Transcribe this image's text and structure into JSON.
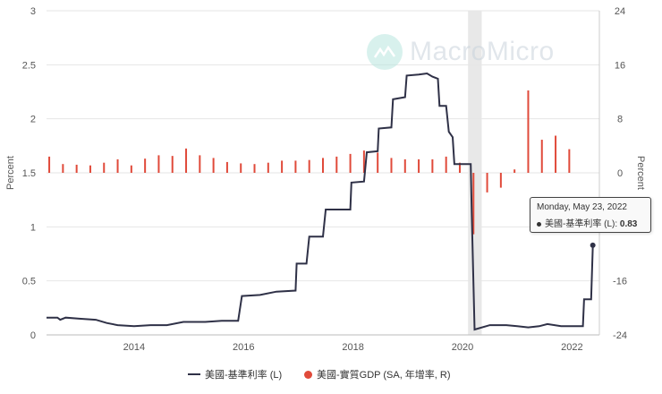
{
  "watermark": {
    "text": "MacroMicro"
  },
  "chart_data": {
    "type": "line",
    "left_axis": {
      "label": "Percent",
      "ticks": [
        0,
        0.5,
        1,
        1.5,
        2,
        2.5,
        3
      ],
      "tick_labels": [
        "0",
        "0.5",
        "1",
        "1.5",
        "2",
        "2.5",
        "3"
      ],
      "range": [
        0,
        3
      ]
    },
    "right_axis": {
      "label": "Percent",
      "ticks": [
        -24,
        -16,
        -8,
        0,
        8,
        16,
        24
      ],
      "tick_labels": [
        "-24",
        "-16",
        "-8",
        "0",
        "8",
        "16",
        "24"
      ],
      "range": [
        -24,
        24
      ]
    },
    "x_axis": {
      "ticks": [
        2014,
        2016,
        2018,
        2020,
        2022
      ],
      "tick_labels": [
        "2014",
        "2016",
        "2018",
        "2020",
        "2022"
      ],
      "range": [
        2012.4,
        2022.5
      ]
    },
    "recession_band": [
      2020.1,
      2020.35
    ],
    "series": [
      {
        "name": "美國-基準利率 (L)",
        "axis": "left",
        "color": "#2f3147",
        "points": [
          [
            2012.4,
            0.16
          ],
          [
            2012.6,
            0.16
          ],
          [
            2012.65,
            0.14
          ],
          [
            2012.75,
            0.16
          ],
          [
            2013.0,
            0.15
          ],
          [
            2013.3,
            0.14
          ],
          [
            2013.5,
            0.11
          ],
          [
            2013.7,
            0.09
          ],
          [
            2014.0,
            0.08
          ],
          [
            2014.3,
            0.09
          ],
          [
            2014.6,
            0.09
          ],
          [
            2014.9,
            0.12
          ],
          [
            2015.3,
            0.12
          ],
          [
            2015.6,
            0.13
          ],
          [
            2015.9,
            0.13
          ],
          [
            2015.97,
            0.36
          ],
          [
            2016.3,
            0.37
          ],
          [
            2016.6,
            0.4
          ],
          [
            2016.95,
            0.41
          ],
          [
            2016.97,
            0.66
          ],
          [
            2017.15,
            0.66
          ],
          [
            2017.2,
            0.91
          ],
          [
            2017.45,
            0.91
          ],
          [
            2017.5,
            1.16
          ],
          [
            2017.95,
            1.16
          ],
          [
            2017.97,
            1.41
          ],
          [
            2018.2,
            1.42
          ],
          [
            2018.25,
            1.69
          ],
          [
            2018.45,
            1.7
          ],
          [
            2018.47,
            1.91
          ],
          [
            2018.7,
            1.92
          ],
          [
            2018.73,
            2.18
          ],
          [
            2018.95,
            2.2
          ],
          [
            2018.98,
            2.4
          ],
          [
            2019.2,
            2.41
          ],
          [
            2019.35,
            2.42
          ],
          [
            2019.45,
            2.39
          ],
          [
            2019.55,
            2.37
          ],
          [
            2019.58,
            2.12
          ],
          [
            2019.7,
            2.12
          ],
          [
            2019.75,
            1.88
          ],
          [
            2019.82,
            1.83
          ],
          [
            2019.85,
            1.58
          ],
          [
            2020.05,
            1.58
          ],
          [
            2020.15,
            1.58
          ],
          [
            2020.17,
            1.1
          ],
          [
            2020.22,
            0.05
          ],
          [
            2020.5,
            0.09
          ],
          [
            2020.8,
            0.09
          ],
          [
            2021.0,
            0.08
          ],
          [
            2021.2,
            0.07
          ],
          [
            2021.4,
            0.08
          ],
          [
            2021.55,
            0.1
          ],
          [
            2021.8,
            0.08
          ],
          [
            2022.0,
            0.08
          ],
          [
            2022.2,
            0.08
          ],
          [
            2022.22,
            0.33
          ],
          [
            2022.35,
            0.33
          ],
          [
            2022.38,
            0.83
          ]
        ]
      },
      {
        "name": "美國-實質GDP (SA, 年增率, R)",
        "axis": "right",
        "color": "#e04a3a",
        "bars": [
          [
            2012.45,
            2.4
          ],
          [
            2012.7,
            1.3
          ],
          [
            2012.95,
            1.2
          ],
          [
            2013.2,
            1.1
          ],
          [
            2013.45,
            1.5
          ],
          [
            2013.7,
            2.0
          ],
          [
            2013.95,
            1.1
          ],
          [
            2014.2,
            2.1
          ],
          [
            2014.45,
            2.6
          ],
          [
            2014.7,
            2.5
          ],
          [
            2014.95,
            3.6
          ],
          [
            2015.2,
            2.6
          ],
          [
            2015.45,
            2.2
          ],
          [
            2015.7,
            1.6
          ],
          [
            2015.95,
            1.4
          ],
          [
            2016.2,
            1.3
          ],
          [
            2016.45,
            1.5
          ],
          [
            2016.7,
            1.8
          ],
          [
            2016.95,
            1.8
          ],
          [
            2017.2,
            1.9
          ],
          [
            2017.45,
            2.2
          ],
          [
            2017.7,
            2.4
          ],
          [
            2017.95,
            2.8
          ],
          [
            2018.2,
            3.3
          ],
          [
            2018.45,
            3.0
          ],
          [
            2018.7,
            2.2
          ],
          [
            2018.95,
            2.0
          ],
          [
            2019.2,
            2.0
          ],
          [
            2019.45,
            2.0
          ],
          [
            2019.7,
            2.4
          ],
          [
            2019.95,
            1.5
          ],
          [
            2020.2,
            -9.1
          ],
          [
            2020.45,
            -2.9
          ],
          [
            2020.7,
            -2.2
          ],
          [
            2020.95,
            0.5
          ],
          [
            2021.2,
            12.2
          ],
          [
            2021.45,
            4.9
          ],
          [
            2021.7,
            5.5
          ],
          [
            2021.95,
            3.5
          ]
        ]
      }
    ],
    "legend": {
      "placement": "bottom",
      "items": [
        "美國-基準利率 (L)",
        "美國-實質GDP (SA, 年增率, R)"
      ]
    },
    "tooltip": {
      "date": "Monday, May 23, 2022",
      "series": "美國-基準利率 (L): ",
      "value": "0.83"
    }
  }
}
